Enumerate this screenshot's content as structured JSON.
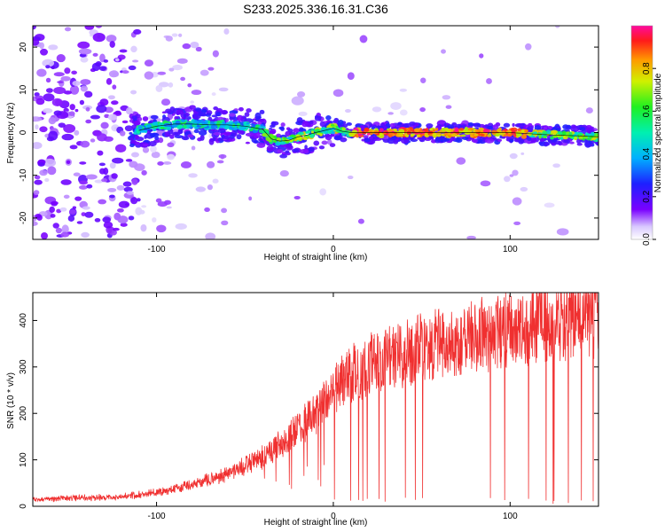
{
  "chart_data": [
    {
      "type": "heatmap",
      "title": "S233.2025.336.16.31.C36",
      "xlabel": "Height of straight line (km)",
      "ylabel": "Frequency (Hz)",
      "xlim": [
        -170,
        150
      ],
      "ylim": [
        -25,
        25
      ],
      "xticks": [
        -100,
        0,
        100
      ],
      "xtick_labels": [
        "-100",
        "0",
        "100"
      ],
      "yticks": [
        -20,
        -10,
        0,
        10,
        20
      ],
      "ytick_labels": [
        "-20",
        "-10",
        "0",
        "10",
        "20"
      ],
      "colorbar": {
        "label": "Normalized spectral amplitude",
        "range": [
          0.0,
          1.0
        ],
        "ticks": [
          0.0,
          0.2,
          0.4,
          0.6,
          0.8
        ],
        "tick_labels": [
          "0.0",
          "0.2",
          "0.4",
          "0.6",
          "0.8"
        ],
        "colormap": "rainbow (purple to red/magenta)"
      },
      "ridge": {
        "description": "dominant spectral ridge frequency vs height",
        "x": [
          -110,
          -100,
          -90,
          -80,
          -70,
          -60,
          -50,
          -40,
          -35,
          -30,
          -25,
          -20,
          -15,
          -10,
          -5,
          0,
          5,
          10,
          20,
          40,
          60,
          80,
          100,
          120,
          140,
          150
        ],
        "y": [
          0.5,
          1.5,
          2.0,
          2.0,
          1.8,
          1.8,
          1.5,
          0.8,
          -1.5,
          -2.0,
          -1.8,
          -1.0,
          -0.6,
          0.0,
          0.5,
          1.0,
          0.3,
          0.0,
          0.0,
          0.0,
          0.0,
          0.0,
          0.0,
          -0.5,
          -0.8,
          -1.0
        ]
      }
    },
    {
      "type": "line",
      "xlabel": "Height of straight line (km)",
      "ylabel": "SNR (10 * v/v)",
      "xlim": [
        -170,
        150
      ],
      "ylim": [
        0,
        460
      ],
      "xticks": [
        -100,
        0,
        100
      ],
      "xtick_labels": [
        "-100",
        "0",
        "100"
      ],
      "yticks": [
        0,
        100,
        200,
        300,
        400
      ],
      "ytick_labels": [
        "0",
        "100",
        "200",
        "300",
        "400"
      ],
      "color": "#f03030",
      "trend": {
        "description": "approximate running-mean SNR (signal is very noisy, with frequent dropouts to ~0 for x > 0)",
        "x": [
          -170,
          -150,
          -120,
          -100,
          -80,
          -60,
          -40,
          -20,
          -10,
          0,
          10,
          20,
          30,
          40,
          60,
          80,
          100,
          120,
          140,
          150
        ],
        "y": [
          15,
          18,
          20,
          30,
          45,
          70,
          105,
          165,
          200,
          250,
          285,
          305,
          320,
          330,
          350,
          365,
          380,
          395,
          405,
          410
        ]
      }
    }
  ]
}
